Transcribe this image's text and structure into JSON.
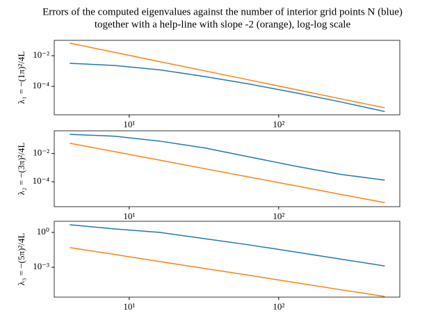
{
  "chart_data": [
    {
      "type": "line",
      "title": [
        "Errors of the computed eigenvalues against the number of interior grid points N (blue)",
        "together with a help-line with slope -2 (orange), log-log scale"
      ],
      "ylabel": "λ₁ = −(1π)²/4L",
      "x": [
        4,
        8,
        16,
        32,
        64,
        128,
        256,
        512
      ],
      "series": [
        {
          "color": "#1f77b4",
          "values": [
            0.0032,
            0.0023,
            0.0012,
            0.00044,
            0.00014,
            3.9e-05,
            1e-05,
            2.3e-06
          ]
        },
        {
          "color": "#ff7f0e",
          "values": [
            0.066,
            0.0165,
            0.0041,
            0.00103,
            0.000258,
            6.4e-05,
            1.6e-05,
            4e-06
          ]
        }
      ],
      "xscale": "log",
      "yscale": "log",
      "xlim": [
        3.15,
        646
      ],
      "ylim": [
        1.4e-06,
        0.1
      ],
      "xticks": [
        {
          "value": 10,
          "label": "10¹"
        },
        {
          "value": 100,
          "label": "10²"
        }
      ],
      "yticks": [
        {
          "value": 0.0001,
          "label": "10⁻⁴"
        },
        {
          "value": 0.01,
          "label": "10⁻²"
        }
      ]
    },
    {
      "type": "line",
      "ylabel": "λ₂ = −(3π)²/4L",
      "x": [
        4,
        8,
        16,
        32,
        64,
        128,
        256,
        512
      ],
      "series": [
        {
          "color": "#1f77b4",
          "values": [
            0.23,
            0.17,
            0.076,
            0.025,
            0.0057,
            0.0013,
            0.00034,
            0.00013
          ]
        },
        {
          "color": "#ff7f0e",
          "values": [
            0.054,
            0.0135,
            0.0034,
            0.00084,
            0.00021,
            5.3e-05,
            1.3e-05,
            3.3e-06
          ]
        }
      ],
      "xscale": "log",
      "yscale": "log",
      "xlim": [
        3.15,
        646
      ],
      "ylim": [
        1.7e-06,
        0.41
      ],
      "xticks": [
        {
          "value": 10,
          "label": "10¹"
        },
        {
          "value": 100,
          "label": "10²"
        }
      ],
      "yticks": [
        {
          "value": 0.0001,
          "label": "10⁻⁴"
        },
        {
          "value": 0.01,
          "label": "10⁻²"
        }
      ]
    },
    {
      "type": "line",
      "ylabel": "λ₃ = −(5π)²/4L",
      "x": [
        4,
        8,
        16,
        32,
        64,
        128,
        256,
        512
      ],
      "series": [
        {
          "color": "#1f77b4",
          "values": [
            4.6,
            2.0,
            1.0,
            0.29,
            0.083,
            0.021,
            0.0052,
            0.0013
          ]
        },
        {
          "color": "#ff7f0e",
          "values": [
            0.05,
            0.0125,
            0.0031,
            0.00078,
            0.0002,
            4.9e-05,
            1.2e-05,
            3.1e-06
          ]
        }
      ],
      "xscale": "log",
      "yscale": "log",
      "xlim": [
        3.15,
        646
      ],
      "ylim": [
        2.7e-06,
        9.1
      ],
      "xticks": [
        {
          "value": 10,
          "label": "10¹"
        },
        {
          "value": 100,
          "label": "10²"
        }
      ],
      "yticks": [
        {
          "value": 0.001,
          "label": "10⁻³"
        },
        {
          "value": 1,
          "label": "10⁰"
        }
      ]
    }
  ]
}
